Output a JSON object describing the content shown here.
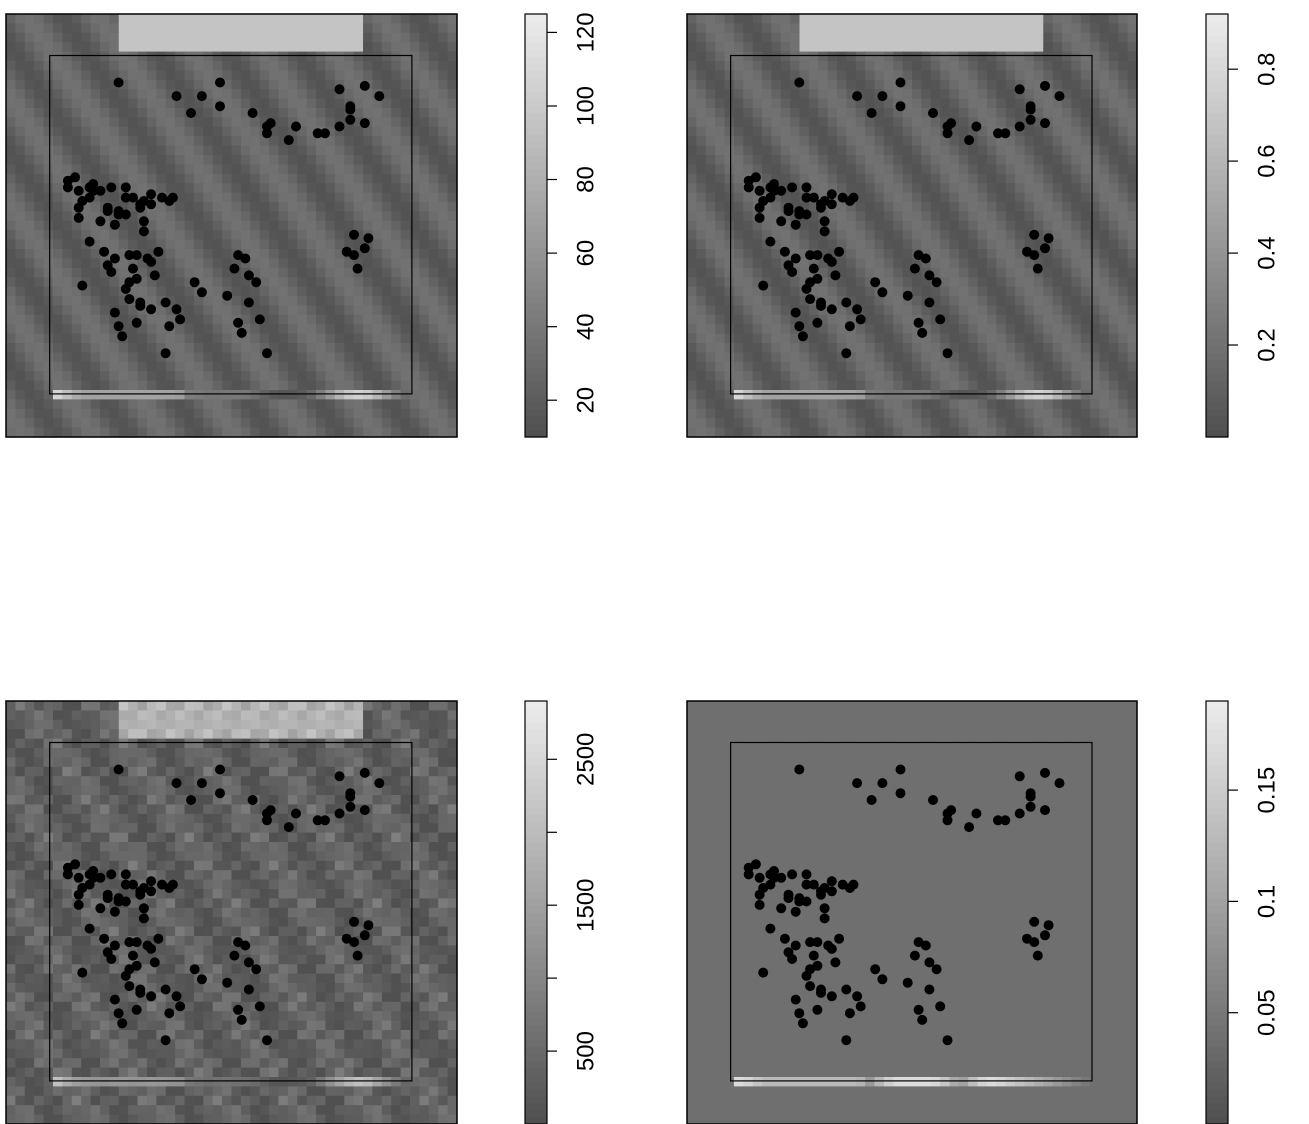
{
  "chart_data": [
    {
      "type": "heatmap",
      "title": "",
      "colorbar": {
        "range": [
          10,
          125
        ],
        "ticks": [
          20,
          40,
          60,
          80,
          100,
          120
        ],
        "tick_labels": [
          "20",
          "40",
          "60",
          "80",
          "100",
          "120"
        ]
      },
      "grayscale": [
        "#505050",
        "#ebebeb"
      ],
      "texture": 0
    },
    {
      "type": "heatmap",
      "title": "",
      "colorbar": {
        "range": [
          0.0,
          0.92
        ],
        "ticks": [
          0.2,
          0.4,
          0.6,
          0.8
        ],
        "tick_labels": [
          "0.2",
          "0.4",
          "0.6",
          "0.8"
        ]
      },
      "grayscale": [
        "#505050",
        "#ebebeb"
      ],
      "texture": 0
    },
    {
      "type": "heatmap",
      "title": "",
      "colorbar": {
        "range": [
          0,
          2900
        ],
        "ticks": [
          500,
          1000,
          1500,
          2000,
          2500
        ],
        "tick_labels": [
          "500",
          "",
          "1500",
          "",
          "2500"
        ]
      },
      "grayscale": [
        "#505050",
        "#ebebeb"
      ],
      "texture": 1
    },
    {
      "type": "heatmap",
      "title": "",
      "colorbar": {
        "range": [
          0.0,
          0.19
        ],
        "ticks": [
          0.05,
          0.1,
          0.15
        ],
        "tick_labels": [
          "0.05",
          "0.1",
          "0.15"
        ]
      },
      "grayscale": [
        "#505050",
        "#ebebeb"
      ],
      "texture": 2
    }
  ],
  "points": [
    [
      0.19,
      0.92
    ],
    [
      0.47,
      0.85
    ],
    [
      0.47,
      0.92
    ],
    [
      0.35,
      0.88
    ],
    [
      0.42,
      0.88
    ],
    [
      0.39,
      0.83
    ],
    [
      0.56,
      0.83
    ],
    [
      0.6,
      0.77
    ],
    [
      0.61,
      0.8
    ],
    [
      0.6,
      0.79
    ],
    [
      0.66,
      0.75
    ],
    [
      0.68,
      0.79
    ],
    [
      0.74,
      0.77
    ],
    [
      0.76,
      0.77
    ],
    [
      0.8,
      0.79
    ],
    [
      0.83,
      0.81
    ],
    [
      0.83,
      0.84
    ],
    [
      0.87,
      0.8
    ],
    [
      0.83,
      0.85
    ],
    [
      0.8,
      0.9
    ],
    [
      0.87,
      0.91
    ],
    [
      0.91,
      0.88
    ],
    [
      0.05,
      0.61
    ],
    [
      0.05,
      0.63
    ],
    [
      0.08,
      0.6
    ],
    [
      0.07,
      0.64
    ],
    [
      0.12,
      0.62
    ],
    [
      0.11,
      0.58
    ],
    [
      0.12,
      0.6
    ],
    [
      0.09,
      0.57
    ],
    [
      0.11,
      0.61
    ],
    [
      0.14,
      0.6
    ],
    [
      0.17,
      0.61
    ],
    [
      0.16,
      0.55
    ],
    [
      0.19,
      0.54
    ],
    [
      0.16,
      0.54
    ],
    [
      0.18,
      0.5
    ],
    [
      0.19,
      0.53
    ],
    [
      0.21,
      0.53
    ],
    [
      0.21,
      0.58
    ],
    [
      0.21,
      0.61
    ],
    [
      0.23,
      0.58
    ],
    [
      0.25,
      0.55
    ],
    [
      0.25,
      0.56
    ],
    [
      0.26,
      0.57
    ],
    [
      0.28,
      0.56
    ],
    [
      0.28,
      0.59
    ],
    [
      0.31,
      0.58
    ],
    [
      0.33,
      0.57
    ],
    [
      0.34,
      0.58
    ],
    [
      0.26,
      0.51
    ],
    [
      0.26,
      0.48
    ],
    [
      0.08,
      0.55
    ],
    [
      0.08,
      0.52
    ],
    [
      0.14,
      0.51
    ],
    [
      0.18,
      0.4
    ],
    [
      0.22,
      0.41
    ],
    [
      0.24,
      0.41
    ],
    [
      0.21,
      0.31
    ],
    [
      0.22,
      0.33
    ],
    [
      0.24,
      0.34
    ],
    [
      0.23,
      0.37
    ],
    [
      0.17,
      0.36
    ],
    [
      0.15,
      0.42
    ],
    [
      0.11,
      0.45
    ],
    [
      0.27,
      0.4
    ],
    [
      0.28,
      0.39
    ],
    [
      0.3,
      0.42
    ],
    [
      0.29,
      0.35
    ],
    [
      0.25,
      0.27
    ],
    [
      0.22,
      0.28
    ],
    [
      0.25,
      0.26
    ],
    [
      0.28,
      0.25
    ],
    [
      0.32,
      0.27
    ],
    [
      0.35,
      0.25
    ],
    [
      0.4,
      0.33
    ],
    [
      0.36,
      0.22
    ],
    [
      0.33,
      0.2
    ],
    [
      0.24,
      0.21
    ],
    [
      0.19,
      0.2
    ],
    [
      0.18,
      0.24
    ],
    [
      0.2,
      0.17
    ],
    [
      0.32,
      0.12
    ],
    [
      0.42,
      0.3
    ],
    [
      0.49,
      0.29
    ],
    [
      0.51,
      0.37
    ],
    [
      0.52,
      0.41
    ],
    [
      0.54,
      0.4
    ],
    [
      0.55,
      0.35
    ],
    [
      0.57,
      0.33
    ],
    [
      0.55,
      0.27
    ],
    [
      0.58,
      0.22
    ],
    [
      0.52,
      0.21
    ],
    [
      0.53,
      0.18
    ],
    [
      0.6,
      0.12
    ],
    [
      0.84,
      0.47
    ],
    [
      0.88,
      0.46
    ],
    [
      0.87,
      0.43
    ],
    [
      0.84,
      0.41
    ],
    [
      0.82,
      0.42
    ],
    [
      0.85,
      0.37
    ],
    [
      0.09,
      0.32
    ],
    [
      0.16,
      0.38
    ]
  ]
}
